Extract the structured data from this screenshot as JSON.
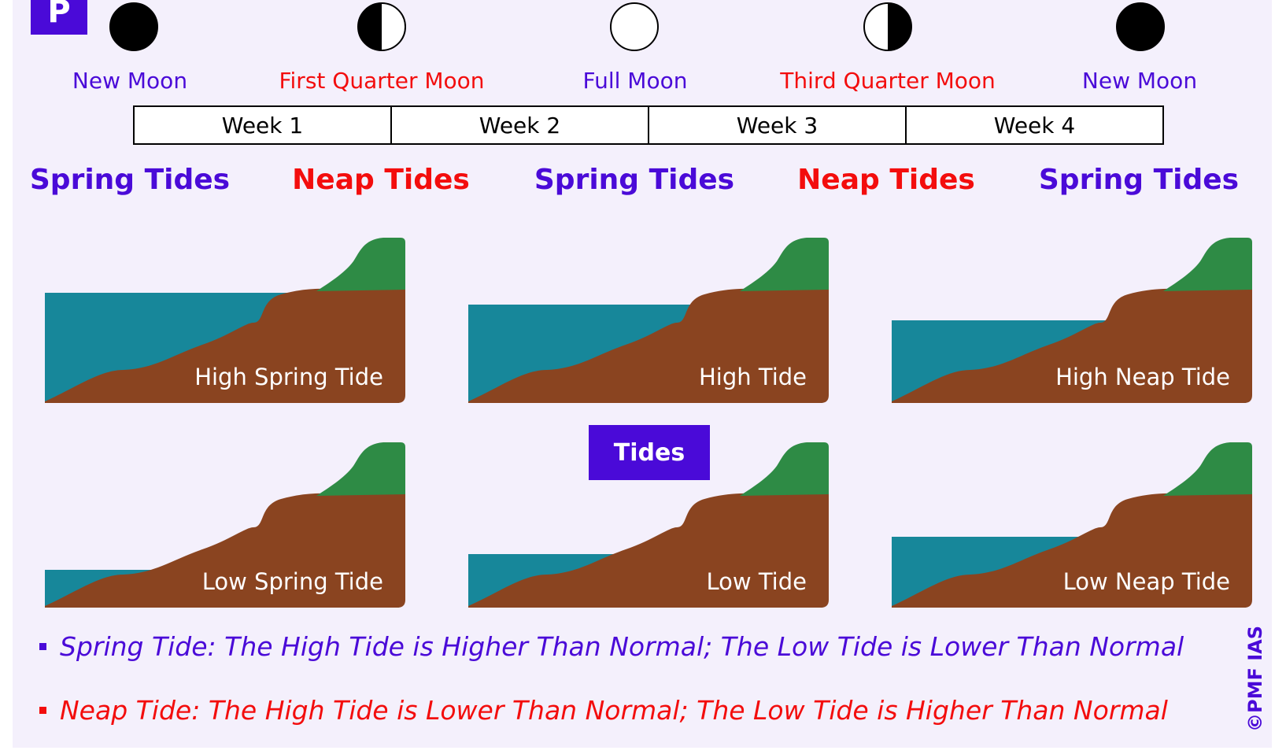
{
  "logo": {
    "glyph": "P"
  },
  "phases": [
    {
      "label": "New Moon",
      "icon": "new-moon-icon",
      "color": "#4a0ad8"
    },
    {
      "label": "First Quarter Moon",
      "icon": "first-quarter-moon-icon",
      "color": "#f30d0d"
    },
    {
      "label": "Full Moon",
      "icon": "full-moon-icon",
      "color": "#4a0ad8"
    },
    {
      "label": "Third Quarter Moon",
      "icon": "third-quarter-moon-icon",
      "color": "#f30d0d"
    },
    {
      "label": "New Moon",
      "icon": "new-moon-icon",
      "color": "#4a0ad8"
    }
  ],
  "weeks": [
    "Week 1",
    "Week 2",
    "Week 3",
    "Week 4"
  ],
  "tide_types": [
    "Spring Tides",
    "Neap Tides",
    "Spring Tides",
    "Neap Tides",
    "Spring Tides"
  ],
  "panels": {
    "high_spring": "High Spring Tide",
    "high": "High Tide",
    "high_neap": "High Neap Tide",
    "low_spring": "Low Spring Tide",
    "low": "Low Tide",
    "low_neap": "Low Neap Tide"
  },
  "center_label": "Tides",
  "notes": {
    "spring": "Spring Tide: The High Tide is Higher Than Normal; The Low Tide is Lower Than Normal",
    "neap": "Neap Tide: The High Tide is Lower Than Normal; The Low Tide is Higher Than Normal"
  },
  "watermark": "©PMF IAS",
  "colors": {
    "brand_blue": "#4a0ad8",
    "accent_red": "#f30d0d",
    "water": "#17879a",
    "land": "#8a4420",
    "grass": "#2e8b45",
    "background": "#f4f0fc"
  }
}
